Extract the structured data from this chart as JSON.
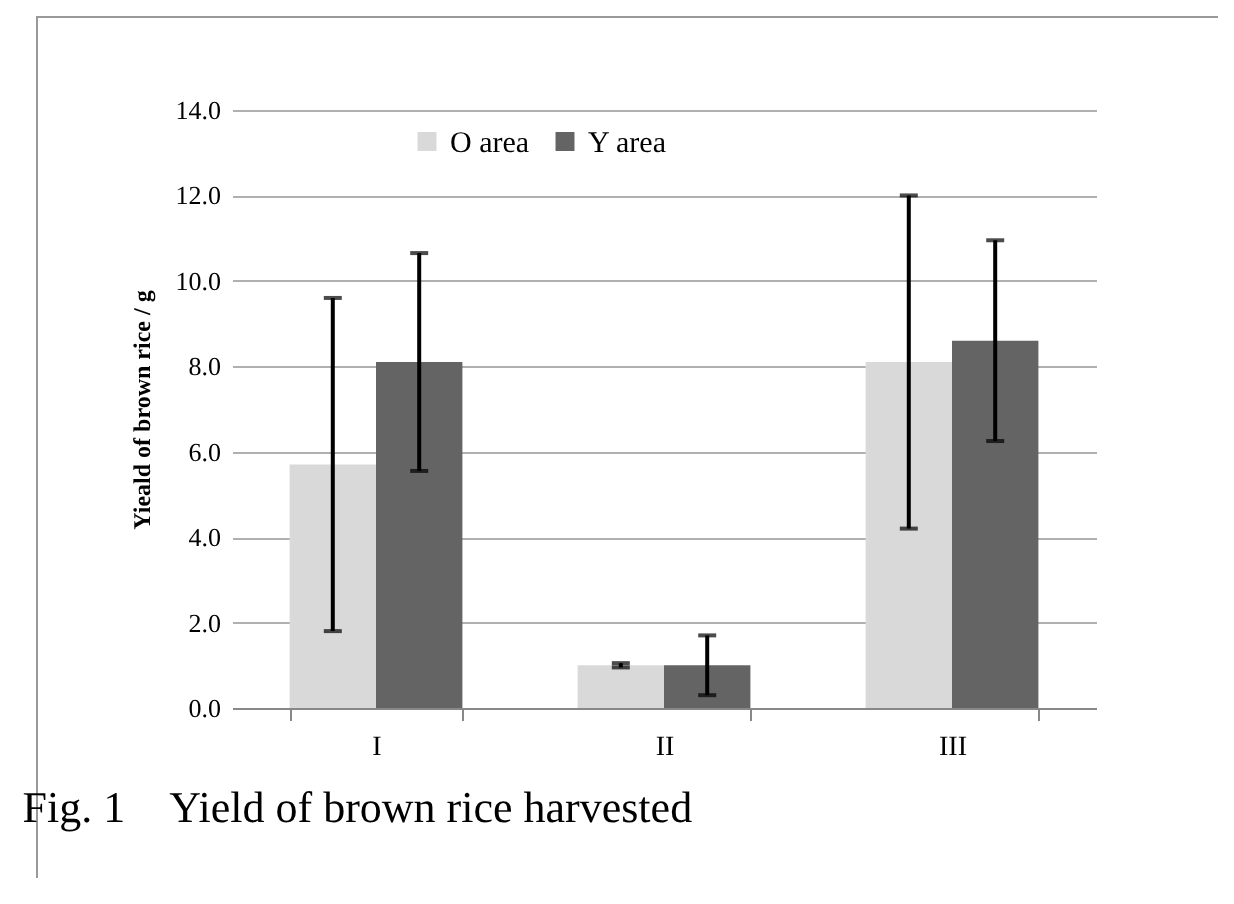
{
  "chart_data": {
    "type": "bar",
    "ylabel": "Yieald of brown rice / g",
    "categories": [
      "I",
      "II",
      "III"
    ],
    "series": [
      {
        "name": "O area",
        "color": "#d9d9d9",
        "values": [
          5.7,
          1.0,
          8.1
        ],
        "errors": [
          3.9,
          0.05,
          3.9
        ]
      },
      {
        "name": "Y area",
        "color": "#646464",
        "values": [
          8.1,
          1.0,
          8.6
        ],
        "errors": [
          2.55,
          0.7,
          2.35
        ]
      }
    ],
    "ylim": [
      0,
      14
    ],
    "yticks": [
      {
        "value": 0,
        "label": "0.0"
      },
      {
        "value": 2,
        "label": "2.0"
      },
      {
        "value": 4,
        "label": "4.0"
      },
      {
        "value": 6,
        "label": "6.0"
      },
      {
        "value": 8,
        "label": "8.0"
      },
      {
        "value": 10,
        "label": "10.0"
      },
      {
        "value": 12,
        "label": "12.0"
      },
      {
        "value": 14,
        "label": "14.0"
      }
    ],
    "grid": "y",
    "legend": "top",
    "annotations": [
      "Fig. 1　Yield of brown rice harvested"
    ]
  }
}
